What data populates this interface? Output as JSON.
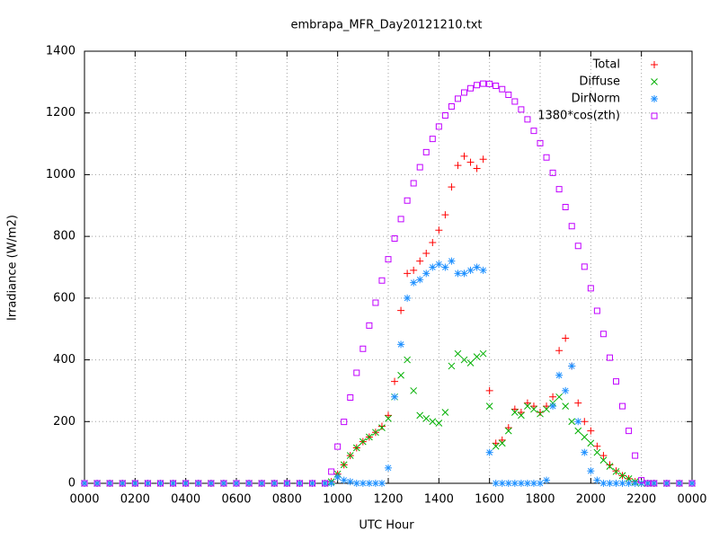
{
  "chart_data": {
    "type": "scatter",
    "title": "embrapa_MFR_Day20121210.txt",
    "xlabel": "UTC Hour",
    "ylabel": "Irradiance (W/m2)",
    "xlim": [
      0,
      24
    ],
    "ylim": [
      0,
      1400
    ],
    "xticks": [
      {
        "value": 0,
        "label": "0000"
      },
      {
        "value": 2,
        "label": "0200"
      },
      {
        "value": 4,
        "label": "0400"
      },
      {
        "value": 6,
        "label": "0600"
      },
      {
        "value": 8,
        "label": "0800"
      },
      {
        "value": 10,
        "label": "1000"
      },
      {
        "value": 12,
        "label": "1200"
      },
      {
        "value": 14,
        "label": "1400"
      },
      {
        "value": 16,
        "label": "1600"
      },
      {
        "value": 18,
        "label": "1800"
      },
      {
        "value": 20,
        "label": "2000"
      },
      {
        "value": 22,
        "label": "2200"
      },
      {
        "value": 24,
        "label": "0000"
      }
    ],
    "yticks": [
      0,
      200,
      400,
      600,
      800,
      1000,
      1200,
      1400
    ],
    "grid": true,
    "legend": "top right",
    "x": [
      0,
      0.5,
      1,
      1.5,
      2,
      2.5,
      3,
      3.5,
      4,
      4.5,
      5,
      5.5,
      6,
      6.5,
      7,
      7.5,
      8,
      8.5,
      9,
      9.5,
      9.75,
      10,
      10.25,
      10.5,
      10.75,
      11,
      11.25,
      11.5,
      11.75,
      12,
      12.25,
      12.5,
      12.75,
      13,
      13.25,
      13.5,
      13.75,
      14,
      14.25,
      14.5,
      14.75,
      15,
      15.25,
      15.5,
      15.75,
      16,
      16.25,
      16.5,
      16.75,
      17,
      17.25,
      17.5,
      17.75,
      18,
      18.25,
      18.5,
      18.75,
      19,
      19.25,
      19.5,
      19.75,
      20,
      20.25,
      20.5,
      20.75,
      21,
      21.25,
      21.5,
      21.75,
      22,
      22.25,
      22.5,
      23,
      23.5,
      24
    ],
    "series": [
      {
        "name": "Total",
        "color": "#ff0000",
        "marker": "plus",
        "values": [
          0,
          0,
          0,
          0,
          0,
          0,
          0,
          0,
          0,
          0,
          0,
          0,
          0,
          0,
          0,
          0,
          0,
          0,
          0,
          0,
          5,
          30,
          60,
          90,
          115,
          135,
          150,
          165,
          185,
          220,
          330,
          560,
          680,
          690,
          720,
          745,
          780,
          820,
          870,
          960,
          1030,
          1060,
          1040,
          1020,
          1050,
          300,
          130,
          140,
          180,
          240,
          230,
          260,
          250,
          230,
          250,
          280,
          430,
          470,
          380,
          260,
          200,
          170,
          120,
          90,
          60,
          40,
          25,
          15,
          5,
          0,
          0,
          0,
          0,
          0,
          0
        ]
      },
      {
        "name": "Diffuse",
        "color": "#00b000",
        "marker": "cross",
        "values": [
          0,
          0,
          0,
          0,
          0,
          0,
          0,
          0,
          0,
          0,
          0,
          0,
          0,
          0,
          0,
          0,
          0,
          0,
          0,
          0,
          5,
          30,
          60,
          90,
          115,
          135,
          150,
          165,
          180,
          210,
          280,
          350,
          400,
          300,
          220,
          210,
          200,
          195,
          230,
          380,
          420,
          400,
          390,
          410,
          420,
          250,
          120,
          130,
          170,
          230,
          220,
          250,
          240,
          225,
          240,
          260,
          280,
          250,
          200,
          170,
          150,
          130,
          100,
          75,
          55,
          38,
          25,
          15,
          5,
          0,
          0,
          0,
          0,
          0,
          0
        ]
      },
      {
        "name": "DirNorm",
        "color": "#1e90ff",
        "marker": "star",
        "values": [
          0,
          0,
          0,
          0,
          0,
          0,
          0,
          0,
          0,
          0,
          0,
          0,
          0,
          0,
          0,
          0,
          0,
          0,
          0,
          0,
          0,
          20,
          10,
          5,
          0,
          0,
          0,
          0,
          0,
          50,
          280,
          450,
          600,
          650,
          660,
          680,
          700,
          710,
          700,
          720,
          680,
          680,
          690,
          700,
          690,
          100,
          0,
          0,
          0,
          0,
          0,
          0,
          0,
          0,
          10,
          250,
          350,
          300,
          380,
          200,
          100,
          40,
          10,
          0,
          0,
          0,
          0,
          0,
          0,
          0,
          0,
          0,
          0,
          0,
          0
        ]
      },
      {
        "name": "1380*cos(zth)",
        "color": "#c000ff",
        "marker": "square",
        "values": [
          0,
          0,
          0,
          0,
          0,
          0,
          0,
          0,
          0,
          0,
          0,
          0,
          0,
          0,
          0,
          0,
          0,
          0,
          0,
          0,
          38,
          119,
          199,
          278,
          358,
          436,
          511,
          585,
          657,
          726,
          793,
          856,
          916,
          972,
          1024,
          1073,
          1116,
          1156,
          1192,
          1221,
          1246,
          1266,
          1280,
          1290,
          1295,
          1294,
          1288,
          1277,
          1259,
          1237,
          1211,
          1179,
          1142,
          1102,
          1056,
          1006,
          953,
          895,
          833,
          769,
          702,
          632,
          559,
          484,
          407,
          330,
          250,
          170,
          90,
          10,
          0,
          0,
          0,
          0,
          0
        ]
      }
    ]
  }
}
